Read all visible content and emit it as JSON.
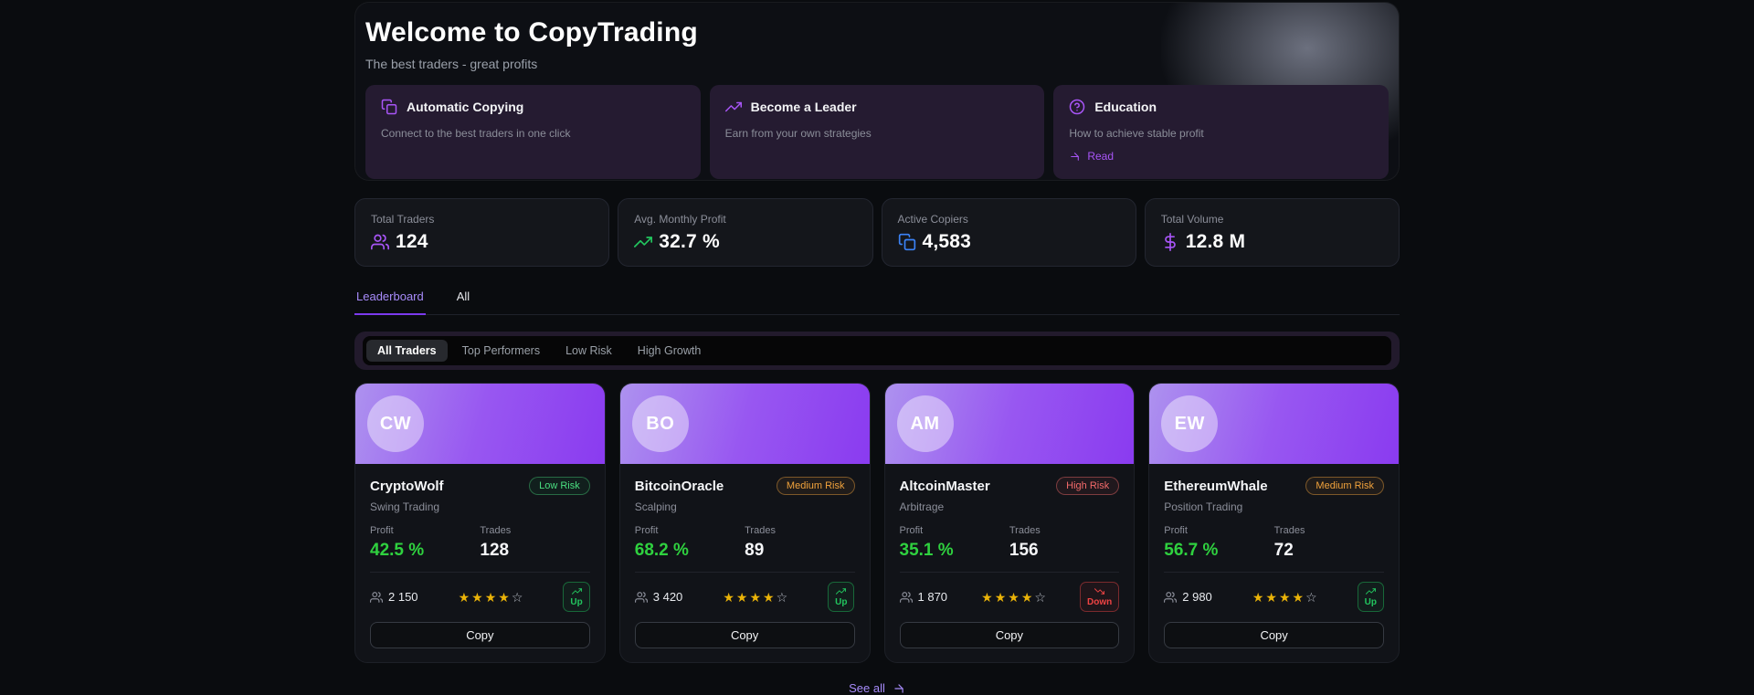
{
  "hero": {
    "title": "Welcome to CopyTrading",
    "subtitle": "The best traders - great profits",
    "features": [
      {
        "icon": "copy-icon",
        "title": "Automatic Copying",
        "description": "Connect to the best traders in one click",
        "link": ""
      },
      {
        "icon": "trending-up-icon",
        "title": "Become a Leader",
        "description": "Earn from your own strategies",
        "link": ""
      },
      {
        "icon": "help-circle-icon",
        "title": "Education",
        "description": "How to achieve stable profit",
        "link": "Read"
      }
    ]
  },
  "stats": {
    "cards": [
      {
        "label": "Total Traders",
        "value": "124",
        "icon": "users-icon",
        "color": "#a855f7"
      },
      {
        "label": "Avg. Monthly Profit",
        "value": "32.7 %",
        "icon": "trending-up-icon",
        "color": "#22c55e"
      },
      {
        "label": "Active Copiers",
        "value": "4,583",
        "icon": "copy-icon",
        "color": "#3b82f6"
      },
      {
        "label": "Total Volume",
        "value": "12.8 M",
        "icon": "dollar-icon",
        "color": "#a855f7"
      }
    ]
  },
  "tabs": [
    {
      "label": "Leaderboard",
      "active": true
    },
    {
      "label": "All",
      "active": false
    }
  ],
  "filters": [
    {
      "label": "All Traders",
      "active": true
    },
    {
      "label": "Top Performers",
      "active": false
    },
    {
      "label": "Low Risk",
      "active": false
    },
    {
      "label": "High Growth",
      "active": false
    }
  ],
  "leaderboard": {
    "profit_label": "Profit",
    "trades_label": "Trades",
    "copy_label": "Copy",
    "see_all_label": "See all",
    "traders": [
      {
        "initials": "CW",
        "name": "CryptoWolf",
        "risk_label": "Low Risk",
        "risk_level": "low",
        "strategy": "Swing Trading",
        "profit": "42.5 %",
        "trades": "128",
        "copiers": "2 150",
        "stars": 4,
        "trend_label": "Up",
        "trend_dir": "up",
        "trend_icon": "trending-up-icon"
      },
      {
        "initials": "BO",
        "name": "BitcoinOracle",
        "risk_label": "Medium Risk",
        "risk_level": "medium",
        "strategy": "Scalping",
        "profit": "68.2 %",
        "trades": "89",
        "copiers": "3 420",
        "stars": 4,
        "trend_label": "Up",
        "trend_dir": "up",
        "trend_icon": "trending-up-icon"
      },
      {
        "initials": "AM",
        "name": "AltcoinMaster",
        "risk_label": "High Risk",
        "risk_level": "high",
        "strategy": "Arbitrage",
        "profit": "35.1 %",
        "trades": "156",
        "copiers": "1 870",
        "stars": 4,
        "trend_label": "Down",
        "trend_dir": "down",
        "trend_icon": "trending-down-icon"
      },
      {
        "initials": "EW",
        "name": "EthereumWhale",
        "risk_label": "Medium Risk",
        "risk_level": "medium",
        "strategy": "Position Trading",
        "profit": "56.7 %",
        "trades": "72",
        "copiers": "2 980",
        "stars": 4,
        "trend_label": "Up",
        "trend_dir": "up",
        "trend_icon": "trending-up-icon"
      }
    ]
  },
  "colors": {
    "accent_purple": "#a855f7",
    "green": "#22c55e",
    "red": "#ef4444",
    "amber": "#f0a23c",
    "star_gold": "#eab308"
  }
}
